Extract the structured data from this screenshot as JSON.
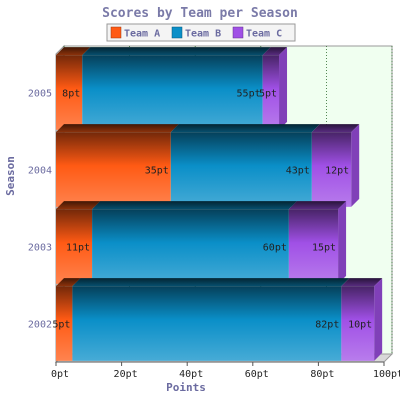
{
  "chart_data": {
    "type": "bar",
    "orientation": "horizontal",
    "stacked": true,
    "title": "Scores by Team per Season",
    "xlabel": "Points",
    "ylabel": "Season",
    "categories": [
      "2005",
      "2004",
      "2003",
      "2002"
    ],
    "series": [
      {
        "name": "Team A",
        "values": [
          8,
          35,
          11,
          5
        ],
        "color": "#ff5a14"
      },
      {
        "name": "Team B",
        "values": [
          55,
          43,
          60,
          82
        ],
        "color": "#0a8fc8"
      },
      {
        "name": "Team C",
        "values": [
          5,
          12,
          15,
          10
        ],
        "color": "#a050e6"
      }
    ],
    "data_labels": [
      [
        "8pt",
        "55pt",
        "5pt"
      ],
      [
        "35pt",
        "43pt",
        "12pt"
      ],
      [
        "11pt",
        "60pt",
        "15pt"
      ],
      [
        "5pt",
        "82pt",
        "10pt"
      ]
    ],
    "xlim": [
      0,
      100
    ],
    "xticks": [
      "0pt",
      "20pt",
      "40pt",
      "60pt",
      "80pt",
      "100pt"
    ],
    "legend_position": "top",
    "grid": true,
    "plot_background": "#f0fff0",
    "grid_color": "#2e6b2e"
  }
}
